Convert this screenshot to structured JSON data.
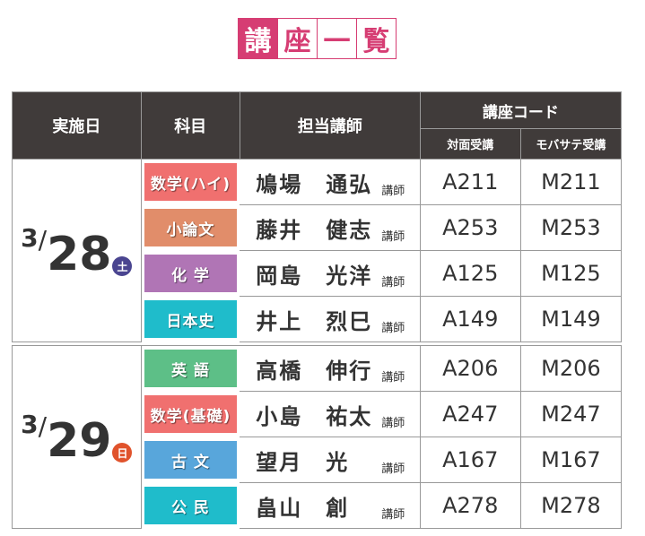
{
  "title": [
    "講",
    "座",
    "一",
    "覧"
  ],
  "header": {
    "date": "実施日",
    "subject": "科目",
    "teacher": "担当講師",
    "code": "講座コード",
    "face": "対面受講",
    "mobile": "モバサテ受講"
  },
  "teacher_suffix": "講師",
  "days": [
    {
      "month": "3",
      "slash": "/",
      "day": "28",
      "dow": "土",
      "dow_color": "#4a4590",
      "rows": [
        {
          "subject": "数学(ハイ)",
          "color": "#f0706f",
          "teacher": "鳩場　通弘",
          "face": "A211",
          "mobile": "M211"
        },
        {
          "subject": "小論文",
          "color": "#e18d6a",
          "teacher": "藤井　健志",
          "face": "A253",
          "mobile": "M253"
        },
        {
          "subject": "化 学",
          "color": "#b075b5",
          "teacher": "岡島　光洋",
          "face": "A125",
          "mobile": "M125"
        },
        {
          "subject": "日本史",
          "color": "#1fbccb",
          "teacher": "井上　烈巳",
          "face": "A149",
          "mobile": "M149"
        }
      ]
    },
    {
      "month": "3",
      "slash": "/",
      "day": "29",
      "dow": "日",
      "dow_color": "#e0532c",
      "rows": [
        {
          "subject": "英 語",
          "color": "#5dbf87",
          "teacher": "高橋　伸行",
          "face": "A206",
          "mobile": "M206"
        },
        {
          "subject": "数学(基礎)",
          "color": "#f0706f",
          "teacher": "小島　祐太",
          "face": "A247",
          "mobile": "M247"
        },
        {
          "subject": "古 文",
          "color": "#58a6db",
          "teacher": "望月　光",
          "face": "A167",
          "mobile": "M167"
        },
        {
          "subject": "公 民",
          "color": "#1fbccb",
          "teacher": "畠山　創",
          "face": "A278",
          "mobile": "M278"
        }
      ]
    }
  ]
}
